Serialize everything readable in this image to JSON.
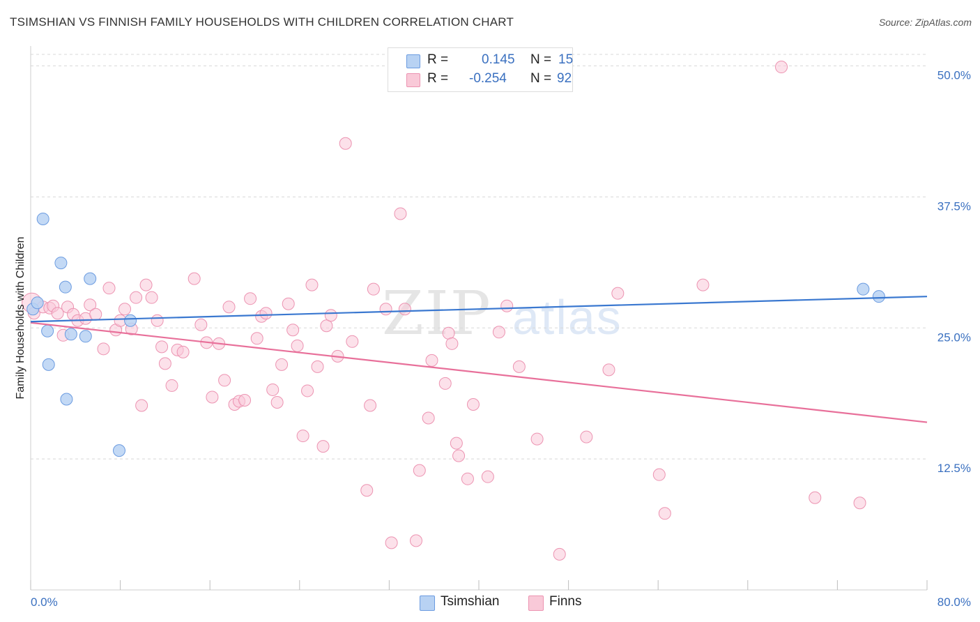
{
  "title": "TSIMSHIAN VS FINNISH FAMILY HOUSEHOLDS WITH CHILDREN CORRELATION CHART",
  "source": "Source: ZipAtlas.com",
  "watermark": {
    "zip": "ZIP",
    "atlas": "atlas"
  },
  "legend": {
    "tsimshian": {
      "r_label": "R =",
      "r_value": "0.145",
      "n_label": "N =",
      "n_value": "15"
    },
    "finns": {
      "r_label": "R =",
      "r_value": "-0.254",
      "n_label": "N =",
      "n_value": "92"
    }
  },
  "bottom_legend": {
    "tsimshian": "Tsimshian",
    "finns": "Finns"
  },
  "colors": {
    "tsimshian_fill": "#b8d2f3",
    "tsimshian_stroke": "#6b9be0",
    "tsimshian_line": "#3a78d0",
    "finns_fill": "#f9c9d8",
    "finns_stroke": "#ec93b1",
    "finns_line": "#e8709a",
    "tick_text": "#3a70c0",
    "grid": "#d8d8d8"
  },
  "chart_data": {
    "type": "scatter",
    "title": "TSIMSHIAN VS FINNISH FAMILY HOUSEHOLDS WITH CHILDREN CORRELATION CHART",
    "xlabel": "",
    "ylabel": "Family Households with Children",
    "xlim": [
      0,
      80
    ],
    "ylim": [
      0,
      51.5
    ],
    "x_tick_labels": {
      "0": "0.0%",
      "80": "80.0%"
    },
    "y_ticks": [
      {
        "value": 12.5,
        "label": "12.5%"
      },
      {
        "value": 25.0,
        "label": "25.0%"
      },
      {
        "value": 37.5,
        "label": "37.5%"
      },
      {
        "value": 50.0,
        "label": "50.0%"
      }
    ],
    "series": [
      {
        "name": "Tsimshian",
        "points": [
          [
            0.2,
            26.8
          ],
          [
            0.6,
            27.4
          ],
          [
            1.1,
            35.4
          ],
          [
            1.5,
            24.7
          ],
          [
            1.6,
            21.5
          ],
          [
            2.7,
            31.2
          ],
          [
            3.1,
            28.9
          ],
          [
            3.2,
            18.2
          ],
          [
            3.6,
            24.4
          ],
          [
            4.9,
            24.2
          ],
          [
            5.3,
            29.7
          ],
          [
            7.9,
            13.3
          ],
          [
            8.9,
            25.7
          ],
          [
            74.3,
            28.7
          ],
          [
            75.7,
            28.0
          ]
        ],
        "trend": {
          "x": [
            0,
            80
          ],
          "y": [
            25.6,
            28.0
          ]
        }
      },
      {
        "name": "Finns",
        "points": [
          [
            0.1,
            27.4
          ],
          [
            0.3,
            26.4
          ],
          [
            1.1,
            27.0
          ],
          [
            1.7,
            26.9
          ],
          [
            2.0,
            27.1
          ],
          [
            2.4,
            26.4
          ],
          [
            2.9,
            24.3
          ],
          [
            3.3,
            27.0
          ],
          [
            3.8,
            26.3
          ],
          [
            4.2,
            25.7
          ],
          [
            4.9,
            25.9
          ],
          [
            5.3,
            27.2
          ],
          [
            5.8,
            26.3
          ],
          [
            6.5,
            23.0
          ],
          [
            7.0,
            28.8
          ],
          [
            7.6,
            24.8
          ],
          [
            8.0,
            25.7
          ],
          [
            8.4,
            26.8
          ],
          [
            9.0,
            24.9
          ],
          [
            9.4,
            27.9
          ],
          [
            9.9,
            17.6
          ],
          [
            10.3,
            29.1
          ],
          [
            10.8,
            27.9
          ],
          [
            11.3,
            25.7
          ],
          [
            11.7,
            23.2
          ],
          [
            12.0,
            21.6
          ],
          [
            12.6,
            19.5
          ],
          [
            13.1,
            22.9
          ],
          [
            13.6,
            22.7
          ],
          [
            14.6,
            29.7
          ],
          [
            15.2,
            25.3
          ],
          [
            15.7,
            23.6
          ],
          [
            16.2,
            18.4
          ],
          [
            16.8,
            23.5
          ],
          [
            17.3,
            20.0
          ],
          [
            17.7,
            27.0
          ],
          [
            18.2,
            17.7
          ],
          [
            18.6,
            18.0
          ],
          [
            19.1,
            18.1
          ],
          [
            19.6,
            27.8
          ],
          [
            20.2,
            24.0
          ],
          [
            20.6,
            26.1
          ],
          [
            21.0,
            26.4
          ],
          [
            21.6,
            19.1
          ],
          [
            22.0,
            17.9
          ],
          [
            22.4,
            21.5
          ],
          [
            23.0,
            27.3
          ],
          [
            23.4,
            24.8
          ],
          [
            23.8,
            23.3
          ],
          [
            24.3,
            14.7
          ],
          [
            24.7,
            19.0
          ],
          [
            25.1,
            29.1
          ],
          [
            25.6,
            21.3
          ],
          [
            26.1,
            13.7
          ],
          [
            26.4,
            25.2
          ],
          [
            26.8,
            26.2
          ],
          [
            27.4,
            22.3
          ],
          [
            28.1,
            42.6
          ],
          [
            28.7,
            23.7
          ],
          [
            30.0,
            9.5
          ],
          [
            30.3,
            17.6
          ],
          [
            30.6,
            28.7
          ],
          [
            31.7,
            26.8
          ],
          [
            32.2,
            4.5
          ],
          [
            33.0,
            35.9
          ],
          [
            34.4,
            4.7
          ],
          [
            34.7,
            11.4
          ],
          [
            35.5,
            16.4
          ],
          [
            35.8,
            21.9
          ],
          [
            37.0,
            19.7
          ],
          [
            37.3,
            24.5
          ],
          [
            37.6,
            23.5
          ],
          [
            38.0,
            14.0
          ],
          [
            38.2,
            12.8
          ],
          [
            39.0,
            10.6
          ],
          [
            39.5,
            17.7
          ],
          [
            40.8,
            10.8
          ],
          [
            41.8,
            24.6
          ],
          [
            42.5,
            27.1
          ],
          [
            43.6,
            21.3
          ],
          [
            45.2,
            14.4
          ],
          [
            47.2,
            3.4
          ],
          [
            49.6,
            14.6
          ],
          [
            51.6,
            21.0
          ],
          [
            52.4,
            28.3
          ],
          [
            56.1,
            11.0
          ],
          [
            56.6,
            7.3
          ],
          [
            60.0,
            29.1
          ],
          [
            67.0,
            49.9
          ],
          [
            70.0,
            8.8
          ],
          [
            74.0,
            8.3
          ],
          [
            33.4,
            26.8
          ]
        ],
        "trend": {
          "x": [
            0,
            80
          ],
          "y": [
            25.5,
            16.0
          ]
        }
      }
    ]
  }
}
